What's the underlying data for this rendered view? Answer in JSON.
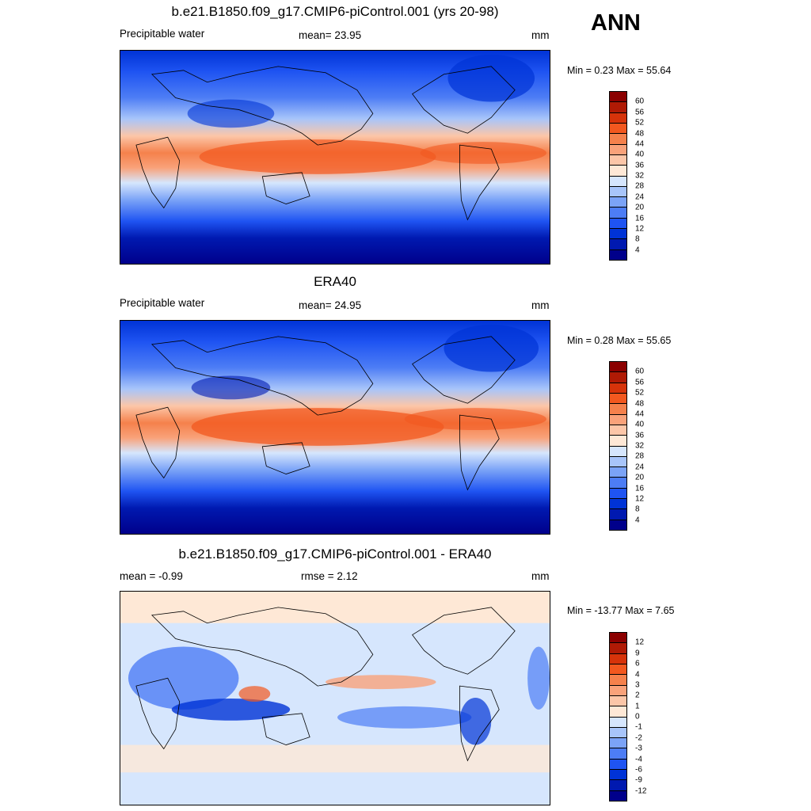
{
  "panels": [
    {
      "id": "model",
      "title": "b.e21.B1850.f09_g17.CMIP6-piControl.001 (yrs 20-98)",
      "left_label": "Precipitable water",
      "center_label": "mean=  23.95",
      "units": "mm",
      "minmax": "Min =    0.23 Max =   55.64",
      "colorbar": {
        "labels": [
          "4",
          "8",
          "12",
          "16",
          "20",
          "24",
          "28",
          "32",
          "36",
          "40",
          "44",
          "48",
          "52",
          "56",
          "60"
        ],
        "colors": [
          "#00008b",
          "#0019b0",
          "#0033d6",
          "#1f54f2",
          "#4d7df5",
          "#7ba3f7",
          "#a8c5fa",
          "#d6e6fd",
          "#fee8d6",
          "#fcc6a8",
          "#f9a27a",
          "#f5814c",
          "#f2581f",
          "#d6330a",
          "#b01a05",
          "#8b0000"
        ]
      }
    },
    {
      "id": "obs",
      "title": "ERA40",
      "left_label": "Precipitable water",
      "center_label": "mean=  24.95",
      "units": "mm",
      "minmax": "Min =    0.28 Max =   55.65",
      "colorbar": {
        "labels": [
          "4",
          "8",
          "12",
          "16",
          "20",
          "24",
          "28",
          "32",
          "36",
          "40",
          "44",
          "48",
          "52",
          "56",
          "60"
        ],
        "colors": [
          "#00008b",
          "#0019b0",
          "#0033d6",
          "#1f54f2",
          "#4d7df5",
          "#7ba3f7",
          "#a8c5fa",
          "#d6e6fd",
          "#fee8d6",
          "#fcc6a8",
          "#f9a27a",
          "#f5814c",
          "#f2581f",
          "#d6330a",
          "#b01a05",
          "#8b0000"
        ]
      }
    },
    {
      "id": "diff",
      "title": "b.e21.B1850.f09_g17.CMIP6-piControl.001 - ERA40",
      "left_label": "mean =  -0.99",
      "center_label": "rmse =    2.12",
      "units": "mm",
      "minmax": "Min = -13.77 Max =   7.65",
      "colorbar": {
        "labels": [
          "-12",
          "-9",
          "-6",
          "-4",
          "-3",
          "-2",
          "-1",
          "0",
          "1",
          "2",
          "3",
          "4",
          "6",
          "9",
          "12"
        ],
        "colors": [
          "#00008b",
          "#0019b0",
          "#0033d6",
          "#1f54f2",
          "#4d7df5",
          "#7ba3f7",
          "#a8c5fa",
          "#d6e6fd",
          "#fee8d6",
          "#fcc6a8",
          "#f9a27a",
          "#f5814c",
          "#f2581f",
          "#d6330a",
          "#b01a05",
          "#8b0000"
        ]
      }
    }
  ],
  "season": "ANN"
}
